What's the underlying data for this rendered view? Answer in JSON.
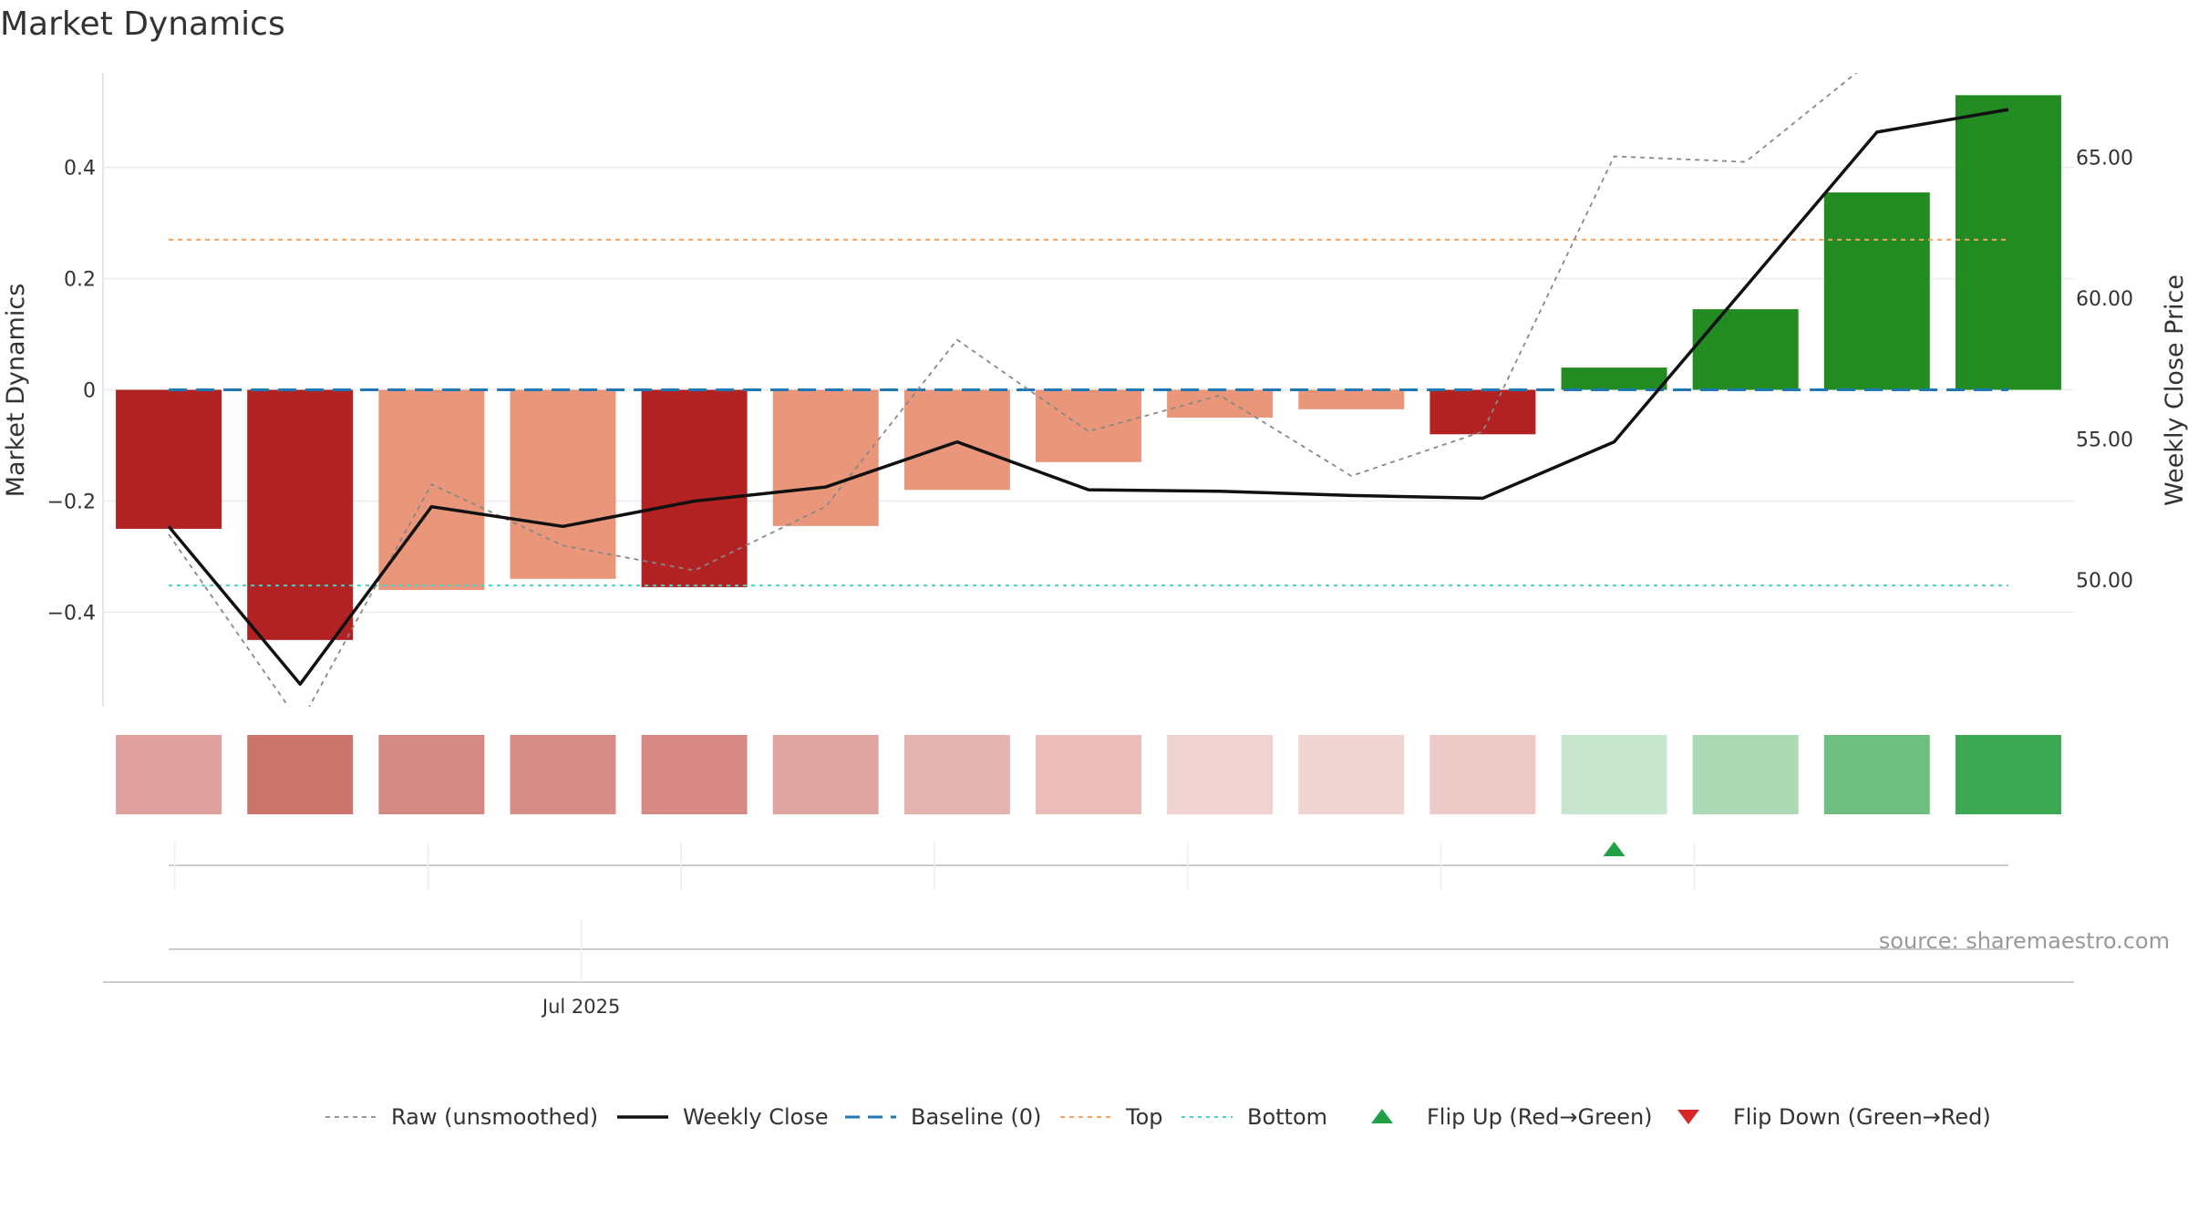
{
  "colors": {
    "strong_red": "#b22222",
    "light_red": "#e9967a",
    "green": "#228b22",
    "close_line": "#111111",
    "raw_line": "#888888",
    "baseline": "#1f77b4",
    "top_line": "#f4a460",
    "bottom_line": "#48d1cc",
    "flip_up": "#22a045",
    "flip_down": "#d62728"
  },
  "chart_data": {
    "type": "bar",
    "title": "Market Dynamics",
    "ylabel": "Market Dynamics",
    "y2label": "Weekly Close Price",
    "ylim": [
      -0.57,
      0.57
    ],
    "y2lim": [
      45.5,
      68.0
    ],
    "yticks": [
      -0.4,
      -0.2,
      0,
      0.2,
      0.4
    ],
    "ytick_labels": [
      "−0.4",
      "−0.2",
      "0",
      "0.2",
      "0.4"
    ],
    "y2ticks": [
      50,
      55,
      60,
      65
    ],
    "y2tick_labels": [
      "50.00",
      "55.00",
      "60.00",
      "65.00"
    ],
    "xtick_label": "Jul 2025",
    "xtick_label_index": 3,
    "values": [
      -0.25,
      -0.45,
      -0.36,
      -0.34,
      -0.355,
      -0.245,
      -0.18,
      -0.13,
      -0.05,
      -0.035,
      -0.08,
      0.04,
      0.145,
      0.355,
      0.53
    ],
    "bar_colors": [
      "strong_red",
      "strong_red",
      "light_red",
      "light_red",
      "strong_red",
      "light_red",
      "light_red",
      "light_red",
      "light_red",
      "light_red",
      "strong_red",
      "green",
      "green",
      "green",
      "green"
    ],
    "strength_colors": [
      "#dfa19d",
      "#cc756d",
      "#d58983",
      "#d68d87",
      "#d68a83",
      "#dfa6a1",
      "#e3b3b0",
      "#ebbdbb",
      "#f0d3d1",
      "#f0d4d2",
      "#edc9c8",
      "#c8e6ce",
      "#acdab4",
      "#6ebe82",
      "#3da853"
    ],
    "weekly_close": [
      51.9,
      46.3,
      52.6,
      51.9,
      52.8,
      53.3,
      54.9,
      53.2,
      53.15,
      53.0,
      52.9,
      54.9,
      60.4,
      65.9,
      66.7
    ],
    "raw": [
      -0.26,
      -0.6,
      -0.17,
      -0.28,
      -0.325,
      -0.21,
      0.09,
      -0.075,
      -0.01,
      -0.155,
      -0.075,
      0.42,
      0.41,
      0.6,
      0.6
    ],
    "top": 0.27,
    "bottom": -0.352,
    "baseline": 0,
    "flip_up_index": 11,
    "source": "source: sharemaestro.com",
    "legend": [
      {
        "label": "Raw (unsmoothed)",
        "style": "raw"
      },
      {
        "label": "Weekly Close",
        "style": "close"
      },
      {
        "label": "Baseline (0)",
        "style": "baseline"
      },
      {
        "label": "Top",
        "style": "top"
      },
      {
        "label": "Bottom",
        "style": "bottom"
      },
      {
        "label": "Flip Up (Red→Green)",
        "style": "flip_up"
      },
      {
        "label": "Flip Down (Green→Red)",
        "style": "flip_down"
      }
    ]
  }
}
